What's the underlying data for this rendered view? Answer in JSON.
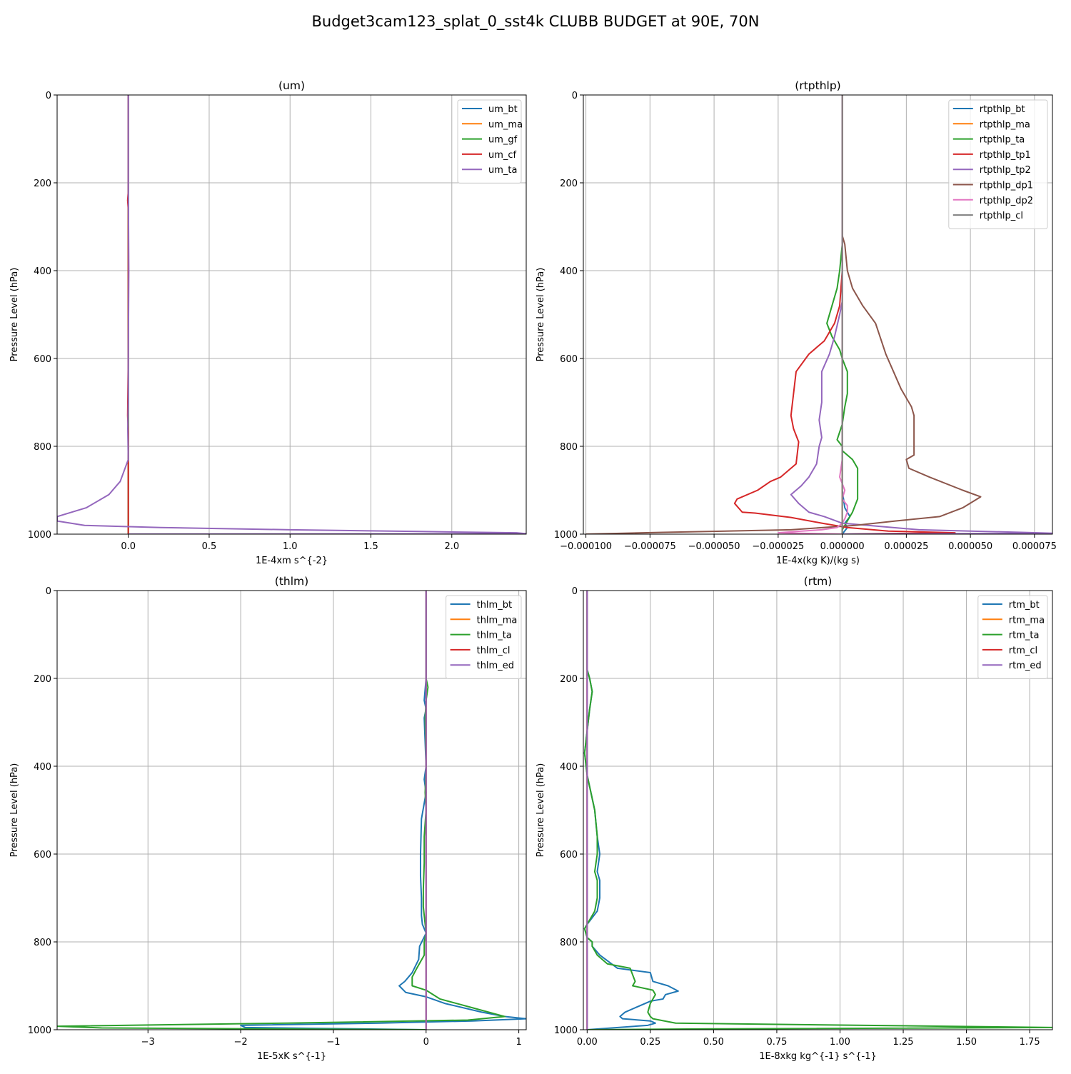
{
  "suptitle": "Budget3cam123_splat_0_sst4k CLUBB BUDGET at 90E, 70N",
  "colors": {
    "c0": "#1f77b4",
    "c1": "#ff7f0e",
    "c2": "#2ca02c",
    "c3": "#d62728",
    "c4": "#9467bd",
    "c5": "#8c564b",
    "c6": "#e377c2",
    "c7": "#7f7f7f",
    "grid": "#b0b0b0"
  },
  "chart_data": [
    {
      "type": "line",
      "title": "(um)",
      "xlabel": "1E-4xm s^{-2}",
      "ylabel": "Pressure Level (hPa)",
      "xlim": [
        -0.44,
        2.46
      ],
      "ylim": [
        1000,
        0
      ],
      "xticks": [
        0.0,
        0.5,
        1.0,
        1.5,
        2.0
      ],
      "xtick_labels": [
        "0.0",
        "0.5",
        "1.0",
        "1.5",
        "2.0"
      ],
      "yticks": [
        0,
        200,
        400,
        600,
        800,
        1000
      ],
      "ytick_labels": [
        "0",
        "200",
        "400",
        "600",
        "800",
        "1000"
      ],
      "grid": true,
      "legend_position": "top-right",
      "series": [
        {
          "name": "um_bt",
          "color": "#1f77b4",
          "x": [
            0.0,
            0.0
          ],
          "y": [
            0,
            1000
          ]
        },
        {
          "name": "um_ma",
          "color": "#ff7f0e",
          "x": [
            0.0,
            0.0
          ],
          "y": [
            0,
            1000
          ]
        },
        {
          "name": "um_gf",
          "color": "#2ca02c",
          "x": [
            0.0,
            0.0
          ],
          "y": [
            0,
            1000
          ]
        },
        {
          "name": "um_cf",
          "color": "#d62728",
          "x": [
            0.0,
            0.0,
            -0.004,
            0.0,
            0.0,
            0.0,
            -0.004,
            0.0,
            0.0,
            0.0,
            0.0
          ],
          "y": [
            0,
            220,
            240,
            260,
            400,
            600,
            730,
            770,
            840,
            950,
            1000
          ]
        },
        {
          "name": "um_ta",
          "color": "#9467bd",
          "x": [
            0.0,
            0.0,
            0.003,
            0.0,
            0.0,
            -0.003,
            0.0,
            -0.05,
            -0.12,
            -0.26,
            -0.44,
            -0.44,
            -0.27,
            0.2,
            1.0,
            1.8,
            2.4,
            2.46,
            0.0
          ],
          "y": [
            0,
            200,
            400,
            600,
            700,
            760,
            830,
            880,
            910,
            940,
            960,
            970,
            980,
            985,
            990,
            994,
            997,
            999,
            1000
          ]
        }
      ]
    },
    {
      "type": "line",
      "title": "(rtpthlp)",
      "xlabel": "1E-4x(kg K)/(kg s)",
      "ylabel": "Pressure Level (hPa)",
      "xlim": [
        -0.000101,
        8.2e-05
      ],
      "ylim": [
        1000,
        0
      ],
      "xticks": [
        -0.0001,
        -7.5e-05,
        -5e-05,
        -2.5e-05,
        0.0,
        2.5e-05,
        5e-05,
        7.5e-05
      ],
      "xtick_labels": [
        "−0.000100",
        "−0.000075",
        "−0.000050",
        "−0.000025",
        "0.000000",
        "0.000025",
        "0.000050",
        "0.000075"
      ],
      "yticks": [
        0,
        200,
        400,
        600,
        800,
        1000
      ],
      "ytick_labels": [
        "0",
        "200",
        "400",
        "600",
        "800",
        "1000"
      ],
      "grid": true,
      "legend_position": "top-right",
      "series": [
        {
          "name": "rtpthlp_bt",
          "color": "#1f77b4",
          "x": [
            0.0,
            0.0,
            0.0,
            0.0,
            1e-06,
            3e-06,
            1e-06,
            2e-06,
            0.0
          ],
          "y": [
            0,
            500,
            800,
            900,
            940,
            960,
            975,
            985,
            1000
          ]
        },
        {
          "name": "rtpthlp_ma",
          "color": "#ff7f0e",
          "x": [
            0.0,
            0.0
          ],
          "y": [
            0,
            1000
          ]
        },
        {
          "name": "rtpthlp_ta",
          "color": "#2ca02c",
          "x": [
            0.0,
            0.0,
            -1e-06,
            -2e-06,
            -4e-06,
            -6e-06,
            -4e-06,
            -1e-06,
            0.0,
            2e-06,
            2e-06,
            2e-06,
            1e-06,
            0.0,
            -2e-06,
            0.0,
            0.0,
            4e-06,
            6e-06,
            6e-06,
            6e-06,
            6e-06,
            4e-06,
            2e-06,
            0.0,
            0.0
          ],
          "y": [
            0,
            340,
            400,
            440,
            480,
            520,
            550,
            580,
            600,
            630,
            650,
            680,
            710,
            750,
            785,
            800,
            810,
            830,
            850,
            880,
            900,
            920,
            950,
            970,
            990,
            1000
          ]
        },
        {
          "name": "rtpthlp_tp1",
          "color": "#d62728",
          "x": [
            0.0,
            0.0,
            -1e-06,
            -3e-06,
            -7e-06,
            -1.3e-05,
            -1.8e-05,
            -2e-05,
            -1.9e-05,
            -1.7e-05,
            -1.8e-05,
            -2.4e-05,
            -2.8e-05,
            -3.3e-05,
            -4.1e-05,
            -4.2e-05,
            -3.9e-05,
            -3.4e-05,
            -2e-05,
            -8e-06,
            2e-06,
            1.8e-05,
            4.4e-05,
            0.0
          ],
          "y": [
            0,
            400,
            480,
            520,
            560,
            590,
            630,
            730,
            760,
            790,
            840,
            870,
            880,
            900,
            920,
            930,
            950,
            952,
            962,
            975,
            985,
            993,
            997,
            1000
          ]
        },
        {
          "name": "rtpthlp_tp2",
          "color": "#9467bd",
          "x": [
            0.0,
            0.0,
            -1e-06,
            -3e-06,
            -5e-06,
            -8e-06,
            -8e-06,
            -9e-06,
            -8e-06,
            -9e-06,
            -1e-05,
            -1.3e-05,
            -1.6e-05,
            -2e-05,
            -1.7e-05,
            -1.3e-05,
            -7e-06,
            0.0,
            3e-05,
            7e-05,
            8.2e-05,
            0.0
          ],
          "y": [
            0,
            470,
            500,
            550,
            590,
            630,
            700,
            740,
            780,
            800,
            840,
            870,
            890,
            910,
            930,
            950,
            960,
            975,
            990,
            996,
            998,
            1000
          ]
        },
        {
          "name": "rtpthlp_dp1",
          "color": "#8c564b",
          "x": [
            0.0,
            0.0,
            1e-06,
            2e-06,
            4e-06,
            8e-06,
            1.3e-05,
            1.7e-05,
            2.3e-05,
            2.7e-05,
            2.8e-05,
            2.8e-05,
            2.8e-05,
            2.5e-05,
            2.6e-05,
            3.4e-05,
            4.7e-05,
            5.4e-05,
            4.7e-05,
            3.8e-05,
            2.1e-05,
            5e-06,
            -2e-05,
            -7e-05,
            -0.0001
          ],
          "y": [
            0,
            320,
            340,
            400,
            440,
            480,
            520,
            590,
            670,
            710,
            730,
            790,
            820,
            830,
            850,
            870,
            900,
            915,
            940,
            960,
            970,
            980,
            990,
            996,
            1000
          ]
        },
        {
          "name": "rtpthlp_dp2",
          "color": "#e377c2",
          "x": [
            0.0,
            0.0,
            -1e-06,
            1e-06,
            0.0,
            2e-06,
            2e-06,
            1e-06,
            0.0,
            -2e-06,
            -8e-06,
            -1.8e-05,
            -2.5e-05,
            0.0
          ],
          "y": [
            0,
            830,
            870,
            900,
            920,
            935,
            950,
            965,
            975,
            985,
            990,
            994,
            997,
            1000
          ]
        },
        {
          "name": "rtpthlp_cl",
          "color": "#7f7f7f",
          "x": [
            0.0,
            0.0
          ],
          "y": [
            0,
            1000
          ]
        }
      ]
    },
    {
      "type": "line",
      "title": "(thlm)",
      "xlabel": "1E-5xK s^{-1}",
      "ylabel": "Pressure Level (hPa)",
      "xlim": [
        -3.98,
        1.08
      ],
      "ylim": [
        1000,
        0
      ],
      "xticks": [
        -3,
        -2,
        -1,
        0,
        1
      ],
      "xtick_labels": [
        "−3",
        "−2",
        "−1",
        "0",
        "1"
      ],
      "yticks": [
        0,
        200,
        400,
        600,
        800,
        1000
      ],
      "ytick_labels": [
        "0",
        "200",
        "400",
        "600",
        "800",
        "1000"
      ],
      "grid": true,
      "legend_position": "top-right",
      "series": [
        {
          "name": "thlm_bt",
          "color": "#1f77b4",
          "x": [
            0.0,
            0.0,
            -0.02,
            0.0,
            -0.02,
            0.0,
            -0.02,
            0.0,
            -0.05,
            -0.06,
            -0.06,
            -0.05,
            -0.05,
            -0.04,
            0.0,
            -0.07,
            -0.08,
            -0.15,
            -0.23,
            -0.29,
            -0.22,
            0.0,
            0.2,
            0.6,
            0.85,
            1.08,
            0.5,
            -0.5,
            -2.0,
            -1.95,
            0.0
          ],
          "y": [
            0,
            200,
            250,
            270,
            290,
            400,
            430,
            460,
            520,
            600,
            650,
            700,
            740,
            760,
            780,
            810,
            840,
            870,
            890,
            900,
            915,
            925,
            940,
            960,
            970,
            975,
            980,
            985,
            990,
            995,
            1000
          ]
        },
        {
          "name": "thlm_ma",
          "color": "#ff7f0e",
          "x": [
            0.0,
            0.0
          ],
          "y": [
            0,
            1000
          ]
        },
        {
          "name": "thlm_ta",
          "color": "#2ca02c",
          "x": [
            0.0,
            0.0,
            0.02,
            0.0,
            -0.01,
            0.0,
            -0.01,
            0.0,
            -0.02,
            -0.02,
            -0.03,
            -0.03,
            0.0,
            -0.02,
            -0.02,
            -0.1,
            -0.15,
            -0.15,
            0.0,
            0.15,
            0.5,
            0.85,
            0.45,
            -1.5,
            -3.98,
            -3.5,
            0.0
          ],
          "y": [
            0,
            200,
            220,
            250,
            290,
            400,
            460,
            500,
            560,
            620,
            680,
            720,
            780,
            800,
            830,
            860,
            880,
            900,
            910,
            930,
            950,
            970,
            978,
            985,
            992,
            996,
            1000
          ]
        },
        {
          "name": "thlm_cl",
          "color": "#d62728",
          "x": [
            0.0,
            0.0
          ],
          "y": [
            0,
            1000
          ]
        },
        {
          "name": "thlm_ed",
          "color": "#9467bd",
          "x": [
            0.0,
            0.0,
            0.0
          ],
          "y": [
            0,
            500,
            1000
          ]
        }
      ]
    },
    {
      "type": "line",
      "title": "(rtm)",
      "xlabel": "1E-8xkg kg^{-1} s^{-1}",
      "ylabel": "Pressure Level (hPa)",
      "xlim": [
        -0.015,
        1.84
      ],
      "ylim": [
        1000,
        0
      ],
      "xticks": [
        0.0,
        0.25,
        0.5,
        0.75,
        1.0,
        1.25,
        1.5,
        1.75
      ],
      "xtick_labels": [
        "0.00",
        "0.25",
        "0.50",
        "0.75",
        "1.00",
        "1.25",
        "1.50",
        "1.75"
      ],
      "yticks": [
        0,
        200,
        400,
        600,
        800,
        1000
      ],
      "ytick_labels": [
        "0",
        "200",
        "400",
        "600",
        "800",
        "1000"
      ],
      "grid": true,
      "legend_position": "top-right",
      "series": [
        {
          "name": "rtm_bt",
          "color": "#1f77b4",
          "x": [
            0.0,
            0.0,
            0.01,
            0.02,
            0.01,
            0.0,
            -0.01,
            0.0,
            0.03,
            0.04,
            0.05,
            0.04,
            0.05,
            0.05,
            0.04,
            0.0,
            -0.01,
            0.0,
            0.02,
            0.02,
            0.05,
            0.12,
            0.25,
            0.26,
            0.32,
            0.36,
            0.31,
            0.3,
            0.25,
            0.15,
            0.13,
            0.14,
            0.25,
            0.27,
            0.24,
            0.0
          ],
          "y": [
            0,
            180,
            200,
            230,
            270,
            320,
            370,
            420,
            500,
            560,
            600,
            640,
            660,
            700,
            730,
            760,
            770,
            790,
            800,
            810,
            830,
            860,
            870,
            890,
            900,
            912,
            920,
            930,
            935,
            960,
            970,
            975,
            980,
            985,
            990,
            1000
          ]
        },
        {
          "name": "rtm_ma",
          "color": "#ff7f0e",
          "x": [
            0.0,
            0.0
          ],
          "y": [
            0,
            1000
          ]
        },
        {
          "name": "rtm_ta",
          "color": "#2ca02c",
          "x": [
            0.0,
            0.0,
            0.01,
            0.02,
            0.01,
            0.0,
            -0.01,
            0.0,
            0.03,
            0.04,
            0.04,
            0.03,
            0.04,
            0.04,
            0.03,
            0.0,
            -0.01,
            0.0,
            0.02,
            0.02,
            0.04,
            0.08,
            0.17,
            0.19,
            0.18,
            0.26,
            0.27,
            0.25,
            0.24,
            0.25,
            0.26,
            0.35,
            1.84,
            0.5,
            0.0
          ],
          "y": [
            0,
            180,
            200,
            230,
            270,
            320,
            370,
            420,
            500,
            560,
            600,
            640,
            660,
            700,
            730,
            760,
            770,
            790,
            800,
            810,
            830,
            850,
            860,
            890,
            900,
            910,
            920,
            940,
            960,
            970,
            975,
            985,
            995,
            998,
            1000
          ]
        },
        {
          "name": "rtm_cl",
          "color": "#d62728",
          "x": [
            0.0,
            0.0
          ],
          "y": [
            0,
            1000
          ]
        },
        {
          "name": "rtm_ed",
          "color": "#9467bd",
          "x": [
            0.0,
            0.0
          ],
          "y": [
            0,
            1000
          ]
        }
      ]
    }
  ]
}
